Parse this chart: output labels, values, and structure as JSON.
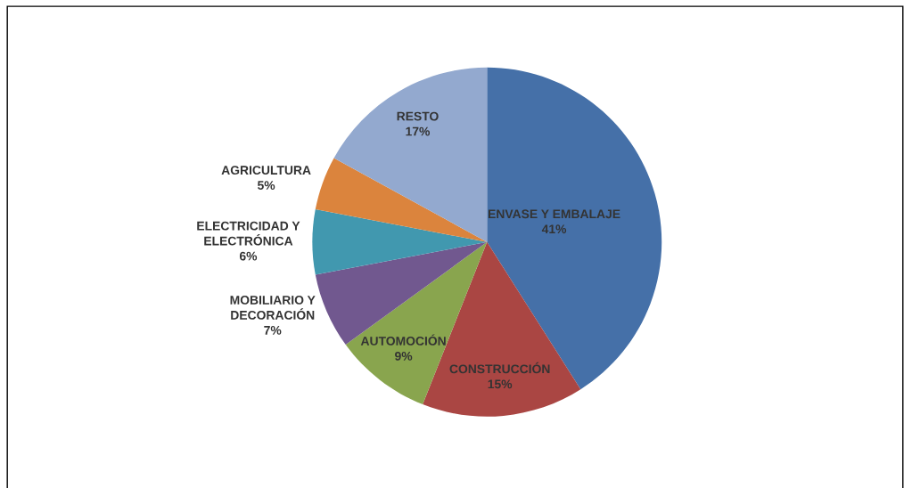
{
  "chart_data": {
    "type": "pie",
    "categories": [
      "ENVASE Y EMBALAJE",
      "CONSTRUCCIÓN",
      "AUTOMOCIÓN",
      "MOBILIARIO Y\nDECORACIÓN",
      "ELECTRICIDAD Y\nELECTRÓNICA",
      "AGRICULTURA",
      "RESTO"
    ],
    "values": [
      41,
      15,
      9,
      7,
      6,
      5,
      17
    ],
    "colors": [
      "#4570a8",
      "#aa4643",
      "#89a54e",
      "#71588f",
      "#4198af",
      "#db843d",
      "#93a9cf"
    ],
    "value_labels": [
      "41%",
      "15%",
      "9%",
      "7%",
      "6%",
      "5%",
      "17%"
    ]
  }
}
